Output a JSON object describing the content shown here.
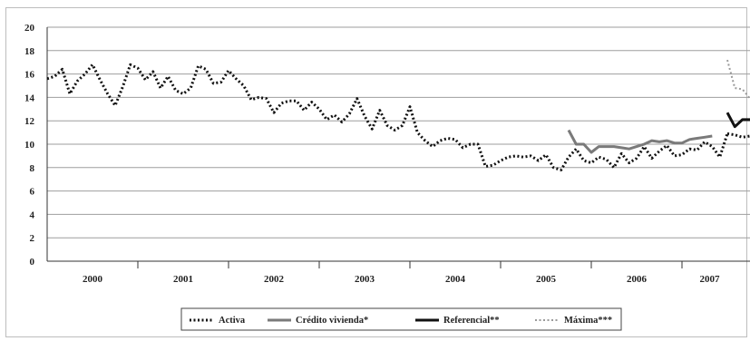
{
  "chart_data": {
    "type": "line",
    "title": "",
    "xlabel": "",
    "ylabel": "",
    "ylim": [
      0,
      20
    ],
    "yticks": [
      "0",
      "2",
      "4",
      "6",
      "8",
      "10",
      "12",
      "14",
      "16",
      "18",
      "20"
    ],
    "xcategories": [
      "2000",
      "2001",
      "2002",
      "2003",
      "2004",
      "2005",
      "2006",
      "2007"
    ],
    "grid": "horizontal",
    "legend_position": "bottom",
    "series": [
      {
        "name": "Activa",
        "color": "#111111",
        "style": "dotted",
        "x": [
          2000.0,
          2000.083,
          2000.167,
          2000.25,
          2000.333,
          2000.417,
          2000.5,
          2000.583,
          2000.667,
          2000.75,
          2000.833,
          2000.917,
          2001.0,
          2001.083,
          2001.167,
          2001.25,
          2001.333,
          2001.417,
          2001.5,
          2001.583,
          2001.667,
          2001.75,
          2001.833,
          2001.917,
          2002.0,
          2002.083,
          2002.167,
          2002.25,
          2002.333,
          2002.417,
          2002.5,
          2002.583,
          2002.667,
          2002.75,
          2002.833,
          2002.917,
          2003.0,
          2003.083,
          2003.167,
          2003.25,
          2003.333,
          2003.417,
          2003.5,
          2003.583,
          2003.667,
          2003.75,
          2003.833,
          2003.917,
          2004.0,
          2004.083,
          2004.167,
          2004.25,
          2004.333,
          2004.417,
          2004.5,
          2004.583,
          2004.667,
          2004.75,
          2004.833,
          2004.917,
          2005.0,
          2005.083,
          2005.167,
          2005.25,
          2005.333,
          2005.417,
          2005.5,
          2005.583,
          2005.667,
          2005.75,
          2005.833,
          2005.917,
          2006.0,
          2006.083,
          2006.167,
          2006.25,
          2006.333,
          2006.417,
          2006.5,
          2006.583,
          2006.667,
          2006.75,
          2006.833,
          2006.917,
          2007.0,
          2007.083,
          2007.167,
          2007.25,
          2007.333,
          2007.417,
          2007.5
        ],
        "y": [
          15.6,
          15.8,
          16.4,
          14.3,
          15.4,
          16.0,
          16.8,
          15.5,
          14.3,
          13.3,
          14.9,
          16.8,
          16.5,
          15.5,
          16.2,
          14.8,
          15.8,
          14.6,
          14.3,
          14.8,
          16.7,
          16.4,
          15.2,
          15.3,
          16.3,
          15.6,
          15.0,
          13.8,
          14.0,
          13.9,
          12.7,
          13.5,
          13.7,
          13.7,
          12.9,
          13.6,
          13.0,
          12.1,
          12.5,
          11.9,
          12.6,
          13.9,
          12.4,
          11.3,
          12.9,
          11.6,
          11.2,
          11.6,
          13.2,
          11.0,
          10.3,
          9.8,
          10.3,
          10.5,
          10.4,
          9.7,
          10.0,
          10.0,
          8.1,
          8.2,
          8.6,
          8.9,
          9.0,
          8.9,
          9.0,
          8.6,
          9.1,
          8.0,
          7.8,
          8.9,
          9.6,
          8.6,
          8.4,
          8.9,
          8.7,
          8.0,
          9.2,
          8.4,
          8.8,
          9.8,
          8.8,
          9.4,
          9.9,
          9.0,
          9.1,
          9.6,
          9.5,
          10.2,
          9.8,
          8.9,
          10.9
        ]
      },
      {
        "name": "Crédito vivienda*",
        "color": "#7a7a7a",
        "style": "solid",
        "x": [
          2005.75,
          2005.833,
          2005.917,
          2006.0,
          2006.083,
          2006.167,
          2006.25,
          2006.333,
          2006.417,
          2006.5,
          2006.583,
          2006.667,
          2006.75,
          2006.833,
          2006.917,
          2007.0,
          2007.083,
          2007.167,
          2007.25,
          2007.333
        ],
        "y": [
          11.2,
          10.0,
          10.0,
          9.3,
          9.8,
          9.8,
          9.8,
          9.7,
          9.6,
          9.8,
          10.0,
          10.3,
          10.2,
          10.3,
          10.1,
          10.1,
          10.4,
          10.5,
          10.6,
          10.7
        ]
      },
      {
        "name": "Referencial**",
        "color": "#111111",
        "style": "solid",
        "x": [
          2007.5,
          2007.583,
          2007.667,
          2007.75
        ],
        "y": [
          12.7,
          11.5,
          12.1,
          12.1
        ]
      },
      {
        "name": "Máxima***",
        "color": "#9a9a9a",
        "style": "dotted",
        "x": [
          2007.5,
          2007.583,
          2007.667,
          2007.75
        ],
        "y": [
          17.2,
          14.8,
          14.7,
          13.9
        ]
      }
    ]
  },
  "activa_tail": {
    "x": [
      2007.5,
      2007.583,
      2007.667,
      2007.75
    ],
    "y": [
      10.9,
      10.8,
      10.6,
      10.7
    ]
  },
  "legend": {
    "items": [
      {
        "label": "Activa"
      },
      {
        "label": "Crédito vivienda*"
      },
      {
        "label": "Referencial**"
      },
      {
        "label": "Máxima***"
      }
    ]
  }
}
